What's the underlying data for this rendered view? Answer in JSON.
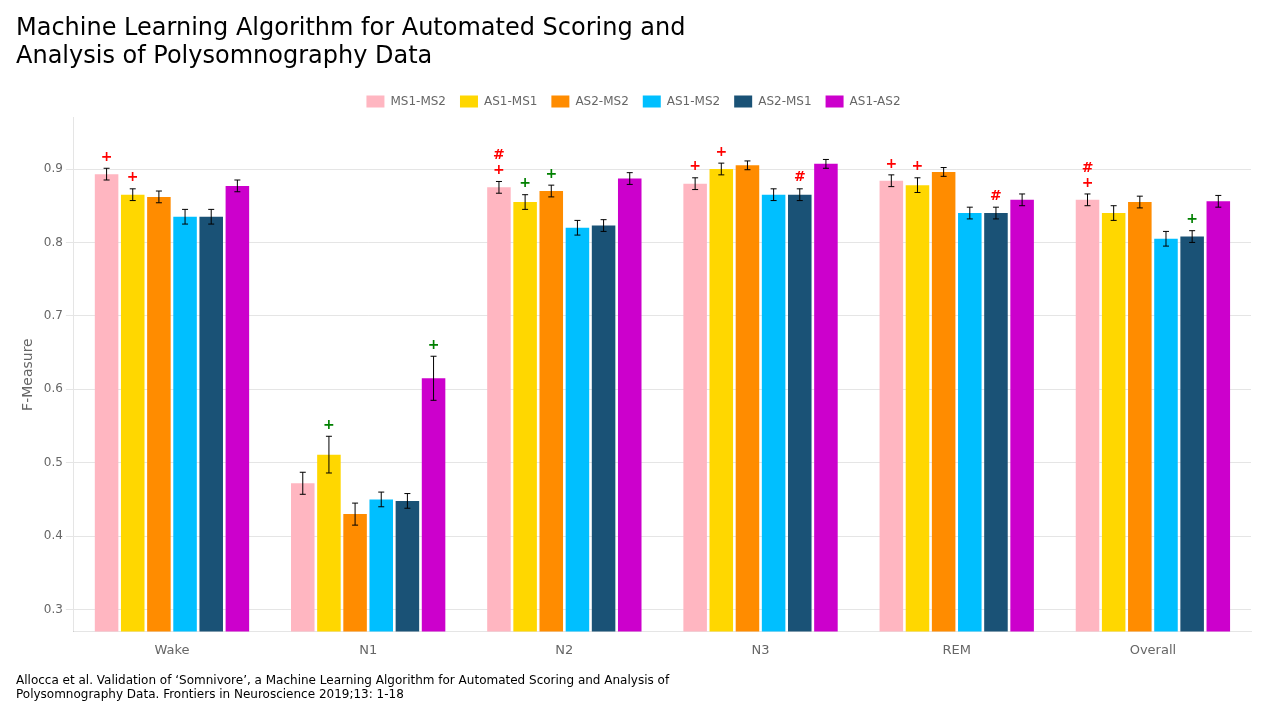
{
  "chart_data": {
    "type": "bar",
    "title": "Machine Learning Algorithm for Automated Scoring and\nAnalysis of Polysomnography Data",
    "subtitle": "Allocca et al. Validation of ‘Somnivore’, a Machine Learning Algorithm for Automated Scoring and Analysis of\nPolysomnography Data. Frontiers in Neuroscience 2019;13: 1-18",
    "ylabel": "F-Measure",
    "categories": [
      "Wake",
      "N1",
      "N2",
      "N3",
      "REM",
      "Overall"
    ],
    "series": [
      {
        "name": "MS1-MS2",
        "color": "#FFB6C1",
        "values": [
          0.893,
          0.472,
          0.875,
          0.88,
          0.884,
          0.858
        ],
        "errors": [
          0.008,
          0.015,
          0.008,
          0.008,
          0.008,
          0.008
        ]
      },
      {
        "name": "AS1-MS1",
        "color": "#FFD700",
        "values": [
          0.865,
          0.511,
          0.855,
          0.9,
          0.878,
          0.84
        ],
        "errors": [
          0.008,
          0.025,
          0.01,
          0.008,
          0.01,
          0.01
        ]
      },
      {
        "name": "AS2-MS2",
        "color": "#FF8C00",
        "values": [
          0.862,
          0.43,
          0.87,
          0.905,
          0.896,
          0.855
        ],
        "errors": [
          0.008,
          0.015,
          0.008,
          0.006,
          0.006,
          0.008
        ]
      },
      {
        "name": "AS1-MS2",
        "color": "#00BFFF",
        "values": [
          0.835,
          0.45,
          0.82,
          0.865,
          0.84,
          0.805
        ],
        "errors": [
          0.01,
          0.01,
          0.01,
          0.008,
          0.008,
          0.01
        ]
      },
      {
        "name": "AS2-MS1",
        "color": "#1A5276",
        "values": [
          0.835,
          0.448,
          0.823,
          0.865,
          0.84,
          0.808
        ],
        "errors": [
          0.01,
          0.01,
          0.008,
          0.008,
          0.008,
          0.008
        ]
      },
      {
        "name": "AS1-AS2",
        "color": "#CC00CC",
        "values": [
          0.877,
          0.615,
          0.887,
          0.907,
          0.858,
          0.856
        ],
        "errors": [
          0.008,
          0.03,
          0.008,
          0.006,
          0.008,
          0.008
        ]
      }
    ],
    "annotations": [
      {
        "category": "Wake",
        "series": "MS1-MS2",
        "text": "+",
        "color": "red"
      },
      {
        "category": "Wake",
        "series": "AS1-MS1",
        "text": "+",
        "color": "red"
      },
      {
        "category": "N1",
        "series": "AS1-MS1",
        "text": "+",
        "color": "green"
      },
      {
        "category": "N1",
        "series": "AS1-AS2",
        "text": "+",
        "color": "green"
      },
      {
        "category": "N2",
        "series": "MS1-MS2",
        "text": "+",
        "color": "red"
      },
      {
        "category": "N2",
        "series": "AS1-MS1",
        "text": "+",
        "color": "green"
      },
      {
        "category": "N2",
        "series": "AS2-MS2",
        "text": "+",
        "color": "green"
      },
      {
        "category": "N2",
        "series": "MS1-MS2",
        "text": "#",
        "color": "red"
      },
      {
        "category": "N3",
        "series": "MS1-MS2",
        "text": "+",
        "color": "red"
      },
      {
        "category": "N3",
        "series": "AS1-MS1",
        "text": "+",
        "color": "red"
      },
      {
        "category": "N3",
        "series": "AS2-MS1",
        "text": "#",
        "color": "red"
      },
      {
        "category": "REM",
        "series": "MS1-MS2",
        "text": "+",
        "color": "red"
      },
      {
        "category": "REM",
        "series": "AS1-MS1",
        "text": "+",
        "color": "red"
      },
      {
        "category": "REM",
        "series": "AS2-MS1",
        "text": "#",
        "color": "red"
      },
      {
        "category": "Overall",
        "series": "MS1-MS2",
        "text": "+",
        "color": "red"
      },
      {
        "category": "Overall",
        "series": "AS2-MS1",
        "text": "+",
        "color": "green"
      },
      {
        "category": "Overall",
        "series": "MS1-MS2",
        "text": "#",
        "color": "red"
      }
    ],
    "ylim": [
      0.27,
      0.97
    ],
    "yticks": [
      0.3,
      0.4,
      0.5,
      0.6,
      0.7,
      0.8,
      0.9
    ],
    "grid": true,
    "legend": "top"
  }
}
